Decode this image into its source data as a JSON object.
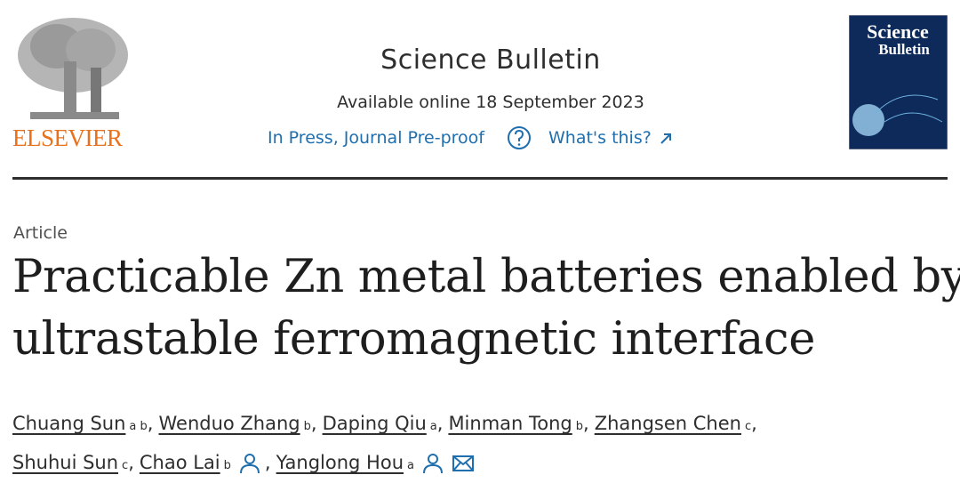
{
  "header": {
    "publisher": "ELSEVIER",
    "journal": "Science Bulletin",
    "availability": "Available online 18 September 2023",
    "status": "In Press, Journal Pre-proof",
    "help_link": "What's this?",
    "cover": {
      "title_line1": "Science",
      "title_line2": "Bulletin"
    }
  },
  "article": {
    "type": "Article",
    "title_lines": [
      "Practicable Zn metal batteries enabled by",
      "ultrastable ferromagnetic interface"
    ],
    "separator": ",",
    "authors": [
      {
        "name": "Chuang Sun",
        "affiliations": [
          "a",
          "b"
        ]
      },
      {
        "name": "Wenduo Zhang",
        "affiliations": [
          "b"
        ]
      },
      {
        "name": "Daping Qiu",
        "affiliations": [
          "a"
        ]
      },
      {
        "name": "Minman Tong",
        "affiliations": [
          "b"
        ]
      },
      {
        "name": "Zhangsen Chen",
        "affiliations": [
          "c"
        ]
      },
      {
        "name": "Shuhui Sun",
        "affiliations": [
          "c"
        ]
      },
      {
        "name": "Chao Lai",
        "affiliations": [
          "b"
        ]
      },
      {
        "name": "Yanglong Hou",
        "affiliations": [
          "a"
        ]
      }
    ]
  }
}
